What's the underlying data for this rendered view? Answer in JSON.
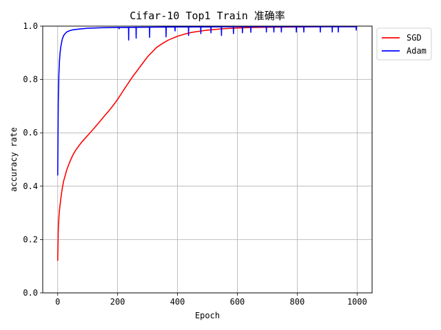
{
  "chart_data": {
    "type": "line",
    "title": "Cifar-10 Top1 Train 准确率",
    "xlabel": "Epoch",
    "ylabel": "accuracy rate",
    "xlim": [
      -50,
      1050
    ],
    "ylim": [
      0.0,
      1.0
    ],
    "xticks": [
      0,
      200,
      400,
      600,
      800,
      1000
    ],
    "yticks": [
      0.0,
      0.2,
      0.4,
      0.6,
      0.8,
      1.0
    ],
    "xtick_labels": [
      "0",
      "200",
      "400",
      "600",
      "800",
      "1000"
    ],
    "ytick_labels": [
      "0.0",
      "0.2",
      "0.4",
      "0.6",
      "0.8",
      "1.0"
    ],
    "grid": true,
    "legend_position": "upper right, outside plot",
    "series": [
      {
        "name": "SGD",
        "color": "#ff0000",
        "x": [
          0,
          2,
          5,
          10,
          15,
          20,
          30,
          40,
          50,
          60,
          80,
          100,
          120,
          150,
          180,
          200,
          220,
          250,
          280,
          300,
          330,
          350,
          370,
          400,
          430,
          450,
          480,
          500,
          550,
          600,
          650,
          700,
          800,
          900,
          1000
        ],
        "y": [
          0.12,
          0.24,
          0.3,
          0.35,
          0.39,
          0.42,
          0.46,
          0.49,
          0.515,
          0.535,
          0.565,
          0.59,
          0.615,
          0.655,
          0.695,
          0.725,
          0.76,
          0.81,
          0.855,
          0.885,
          0.92,
          0.935,
          0.948,
          0.962,
          0.972,
          0.977,
          0.982,
          0.985,
          0.99,
          0.993,
          0.995,
          0.996,
          0.997,
          0.998,
          0.998
        ]
      },
      {
        "name": "Adam",
        "color": "#0000ff",
        "x": [
          0,
          2,
          4,
          6,
          8,
          10,
          15,
          20,
          25,
          30,
          40,
          50,
          70,
          100,
          150,
          200,
          300,
          400,
          500,
          600,
          700,
          800,
          900,
          1000
        ],
        "y": [
          0.44,
          0.72,
          0.82,
          0.87,
          0.9,
          0.92,
          0.95,
          0.965,
          0.972,
          0.978,
          0.983,
          0.986,
          0.989,
          0.992,
          0.994,
          0.995,
          0.996,
          0.997,
          0.997,
          0.998,
          0.998,
          0.998,
          0.998,
          0.998
        ],
        "dips": [
          [
            205,
            0.99
          ],
          [
            237,
            0.948
          ],
          [
            262,
            0.955
          ],
          [
            307,
            0.958
          ],
          [
            362,
            0.96
          ],
          [
            392,
            0.982
          ],
          [
            437,
            0.965
          ],
          [
            478,
            0.972
          ],
          [
            512,
            0.975
          ],
          [
            547,
            0.965
          ],
          [
            587,
            0.972
          ],
          [
            617,
            0.975
          ],
          [
            645,
            0.977
          ],
          [
            697,
            0.978
          ],
          [
            722,
            0.978
          ],
          [
            747,
            0.978
          ],
          [
            797,
            0.978
          ],
          [
            822,
            0.978
          ],
          [
            877,
            0.978
          ],
          [
            917,
            0.978
          ],
          [
            937,
            0.978
          ],
          [
            997,
            0.985
          ]
        ]
      }
    ]
  }
}
